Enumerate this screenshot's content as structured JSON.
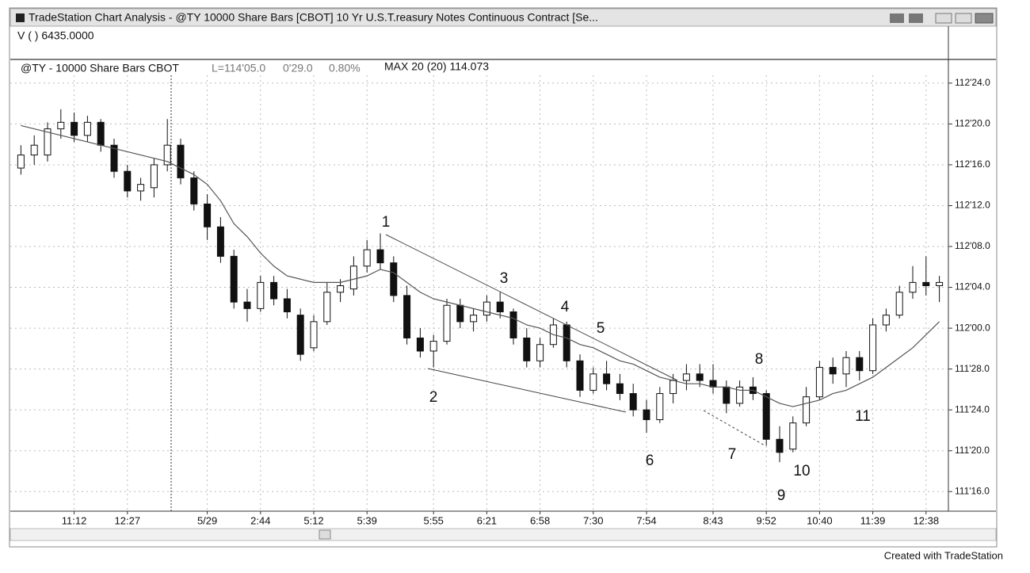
{
  "window_title": "TradeStation Chart Analysis - @TY 10000 Share Bars [CBOT] 10 Yr U.S.T.reasury Notes Continuous Contract [Se...",
  "footer": "Created with TradeStation",
  "chart_data": {
    "type": "candlestick",
    "volume_label": "V ( ) 6435.0000",
    "symbol": "@TY - 10000 Share Bars CBOT",
    "last": "L=114'05.0",
    "change": "0'29.0",
    "change_pct": "0.80%",
    "study": "MAX 20 (20) 114.073",
    "categories": [
      null,
      null,
      null,
      null,
      "11:12",
      null,
      null,
      null,
      "12:27",
      null,
      null,
      null,
      null,
      null,
      "5/29",
      null,
      null,
      null,
      "2:44",
      null,
      null,
      null,
      "5:12",
      null,
      null,
      null,
      "5:39",
      null,
      null,
      null,
      null,
      "5:55",
      null,
      null,
      null,
      "6:21",
      null,
      null,
      null,
      "6:58",
      null,
      null,
      null,
      "7:30",
      null,
      null,
      null,
      "7:54",
      null,
      null,
      null,
      null,
      "8:43",
      null,
      null,
      null,
      "9:52",
      null,
      null,
      null,
      "10:40",
      null,
      null,
      null,
      "11:39",
      null,
      null,
      null,
      "12:38",
      null
    ],
    "open": [
      112.49,
      112.53,
      112.53,
      112.61,
      112.63,
      112.59,
      112.63,
      112.56,
      112.48,
      112.42,
      112.43,
      112.5,
      112.56,
      112.46,
      112.38,
      112.31,
      112.22,
      112.08,
      112.06,
      112.14,
      112.09,
      112.04,
      111.94,
      112.02,
      112.11,
      112.12,
      112.19,
      112.24,
      112.2,
      112.1,
      111.97,
      111.93,
      111.96,
      112.07,
      112.02,
      112.04,
      112.08,
      112.05,
      111.97,
      111.9,
      111.95,
      112.01,
      111.9,
      111.81,
      111.86,
      111.83,
      111.8,
      111.75,
      111.72,
      111.8,
      111.84,
      111.86,
      111.84,
      111.82,
      111.77,
      111.82,
      111.8,
      111.66,
      111.63,
      111.71,
      111.79,
      111.88,
      111.86,
      111.91,
      111.87,
      112.01,
      112.04,
      112.11,
      112.14,
      112.13
    ],
    "high": [
      112.56,
      112.59,
      112.63,
      112.67,
      112.66,
      112.65,
      112.64,
      112.58,
      112.5,
      112.46,
      112.52,
      112.64,
      112.58,
      112.48,
      112.41,
      112.34,
      112.24,
      112.12,
      112.16,
      112.16,
      112.12,
      112.06,
      112.04,
      112.14,
      112.15,
      112.22,
      112.27,
      112.29,
      112.22,
      112.13,
      112.0,
      111.98,
      112.09,
      112.09,
      112.06,
      112.1,
      112.11,
      112.06,
      112.0,
      111.97,
      112.03,
      112.02,
      111.92,
      111.88,
      111.9,
      111.86,
      111.83,
      111.78,
      111.82,
      111.86,
      111.89,
      111.89,
      111.89,
      111.84,
      111.84,
      111.85,
      111.81,
      111.7,
      111.73,
      111.82,
      111.9,
      111.91,
      111.93,
      111.93,
      112.03,
      112.06,
      112.13,
      112.19,
      112.22,
      112.16
    ],
    "low": [
      112.47,
      112.5,
      112.51,
      112.58,
      112.57,
      112.57,
      112.54,
      112.46,
      112.4,
      112.39,
      112.4,
      112.48,
      112.44,
      112.36,
      112.27,
      112.2,
      112.06,
      112.02,
      112.05,
      112.07,
      112.03,
      111.9,
      111.93,
      112.01,
      112.08,
      112.1,
      112.17,
      112.18,
      112.08,
      111.95,
      111.91,
      111.88,
      111.95,
      112.0,
      111.99,
      112.02,
      112.03,
      111.95,
      111.88,
      111.88,
      111.94,
      111.88,
      111.79,
      111.8,
      111.81,
      111.78,
      111.73,
      111.68,
      111.71,
      111.77,
      111.81,
      111.82,
      111.8,
      111.74,
      111.76,
      111.78,
      111.64,
      111.59,
      111.62,
      111.7,
      111.78,
      111.83,
      111.82,
      111.84,
      111.86,
      111.99,
      112.03,
      112.09,
      112.1,
      112.08
    ],
    "close": [
      112.53,
      112.56,
      112.61,
      112.63,
      112.59,
      112.63,
      112.56,
      112.48,
      112.42,
      112.44,
      112.5,
      112.56,
      112.46,
      112.38,
      112.31,
      112.22,
      112.08,
      112.06,
      112.14,
      112.09,
      112.05,
      111.92,
      112.02,
      112.11,
      112.13,
      112.19,
      112.24,
      112.2,
      112.1,
      111.97,
      111.93,
      111.96,
      112.07,
      112.02,
      112.04,
      112.08,
      112.05,
      111.97,
      111.9,
      111.95,
      112.01,
      111.9,
      111.81,
      111.86,
      111.83,
      111.8,
      111.75,
      111.72,
      111.8,
      111.84,
      111.86,
      111.84,
      111.82,
      111.77,
      111.82,
      111.8,
      111.66,
      111.62,
      111.71,
      111.79,
      111.88,
      111.86,
      111.91,
      111.87,
      112.01,
      112.04,
      112.11,
      112.14,
      112.13,
      112.14
    ],
    "ma_values": [
      112.62,
      112.61,
      112.6,
      112.59,
      112.58,
      112.57,
      112.56,
      112.55,
      112.54,
      112.53,
      112.52,
      112.51,
      112.49,
      112.47,
      112.44,
      112.39,
      112.32,
      112.28,
      112.23,
      112.19,
      112.16,
      112.15,
      112.14,
      112.14,
      112.14,
      112.15,
      112.16,
      112.18,
      112.17,
      112.14,
      112.11,
      112.09,
      112.08,
      112.07,
      112.06,
      112.05,
      112.04,
      112.03,
      112.01,
      112.0,
      111.98,
      111.97,
      111.95,
      111.94,
      111.92,
      111.9,
      111.89,
      111.87,
      111.85,
      111.84,
      111.83,
      111.83,
      111.82,
      111.82,
      111.81,
      111.81,
      111.79,
      111.77,
      111.76,
      111.77,
      111.78,
      111.8,
      111.81,
      111.83,
      111.85,
      111.88,
      111.91,
      111.94,
      111.98,
      112.02
    ],
    "ma_color": "#555555",
    "up_color": "#ffffff",
    "down_color": "#111111",
    "ylim": [
      111.44,
      112.82
    ],
    "yticks": [
      {
        "value": 111.5,
        "label": "111'16.0"
      },
      {
        "value": 111.625,
        "label": "111'20.0"
      },
      {
        "value": 111.75,
        "label": "111'24.0"
      },
      {
        "value": 111.875,
        "label": "111'28.0"
      },
      {
        "value": 112,
        "label": "112'00.0"
      },
      {
        "value": 112.125,
        "label": "112'04.0"
      },
      {
        "value": 112.25,
        "label": "112'08.0"
      },
      {
        "value": 112.375,
        "label": "112'12.0"
      },
      {
        "value": 112.5,
        "label": "112'16.0"
      },
      {
        "value": 112.625,
        "label": "112'20.0"
      },
      {
        "value": 112.75,
        "label": "112'24.0"
      }
    ],
    "grid": true,
    "annotations": [
      "1",
      "2",
      "3",
      "4",
      "5",
      "6",
      "7",
      "8",
      "9",
      "10",
      "11"
    ]
  }
}
